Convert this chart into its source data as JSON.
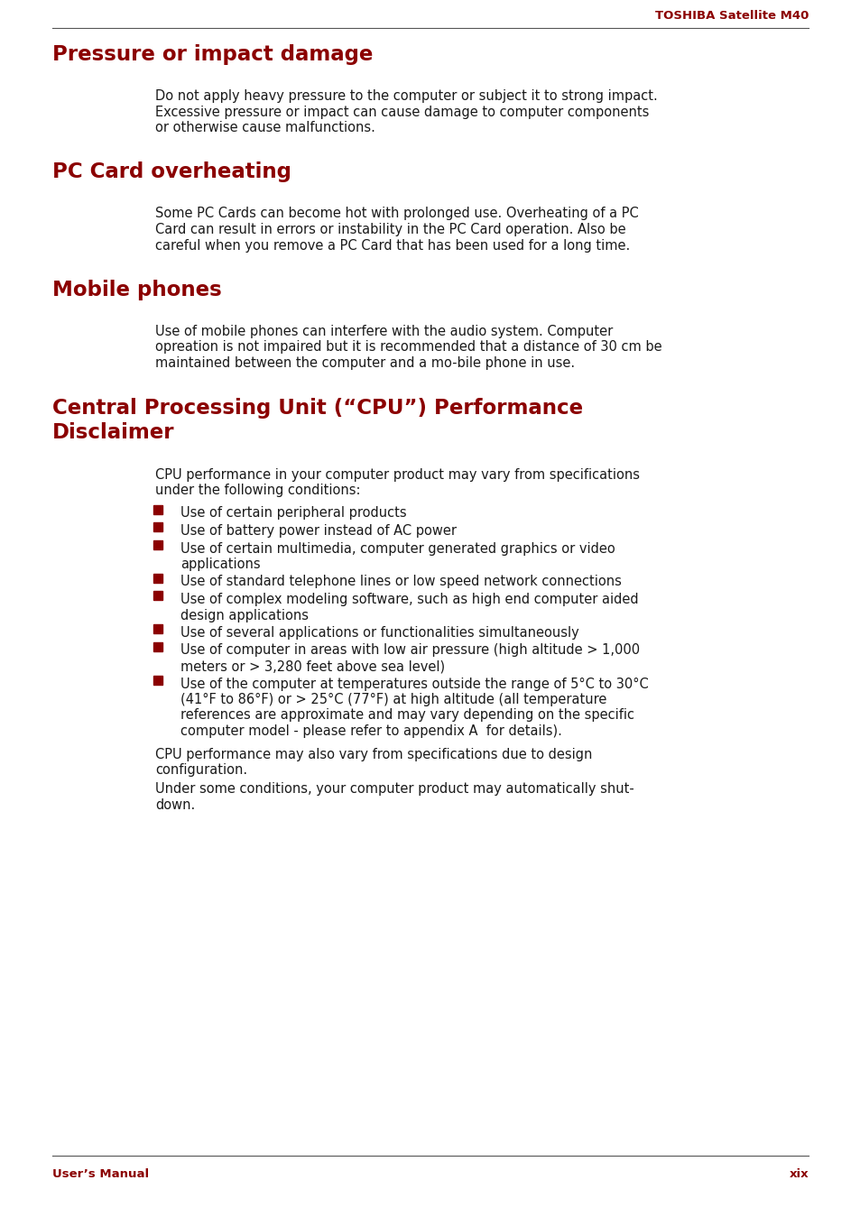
{
  "bg_color": "#ffffff",
  "dark_red": "#8B0000",
  "black": "#1a1a1a",
  "header_text": "TOSHIBA Satellite M40",
  "footer_left": "User’s Manual",
  "footer_right": "xix",
  "sections": [
    {
      "title": "Pressure or impact damage",
      "body": "Do not apply heavy pressure to the computer or subject it to strong impact.\nExcessive pressure or impact can cause damage to computer components\nor otherwise cause malfunctions."
    },
    {
      "title": "PC Card overheating",
      "body": "Some PC Cards can become hot with prolonged use. Overheating of a PC\nCard can result in errors or instability in the PC Card operation. Also be\ncareful when you remove a PC Card that has been used for a long time."
    },
    {
      "title": "Mobile phones",
      "body": "Use of mobile phones can interfere with the audio system. Computer\nopreation is not impaired but it is recommended that a distance of 30 cm be\nmaintained between the computer and a mo-bile phone in use."
    },
    {
      "title": "Central Processing Unit (“CPU”) Performance\nDisclaimer",
      "body": null
    }
  ],
  "cpu_intro": "CPU performance in your computer product may vary from specifications\nunder the following conditions:",
  "cpu_bullets": [
    "Use of certain peripheral products",
    "Use of battery power instead of AC power",
    "Use of certain multimedia, computer generated graphics or video\napplications",
    "Use of standard telephone lines or low speed network connections",
    "Use of complex modeling software, such as high end computer aided\ndesign applications",
    "Use of several applications or functionalities simultaneously",
    "Use of computer in areas with low air pressure (high altitude > 1,000\nmeters or > 3,280 feet above sea level)",
    "Use of the computer at temperatures outside the range of 5°C to 30°C\n(41°F to 86°F) or > 25°C (77°F) at high altitude (all temperature\nreferences are approximate and may vary depending on the specific\ncomputer model - please refer to appendix A  for details)."
  ],
  "cpu_footer1": "CPU performance may also vary from specifications due to design\nconfiguration.",
  "cpu_footer2": "Under some conditions, your computer product may automatically shut-\ndown."
}
